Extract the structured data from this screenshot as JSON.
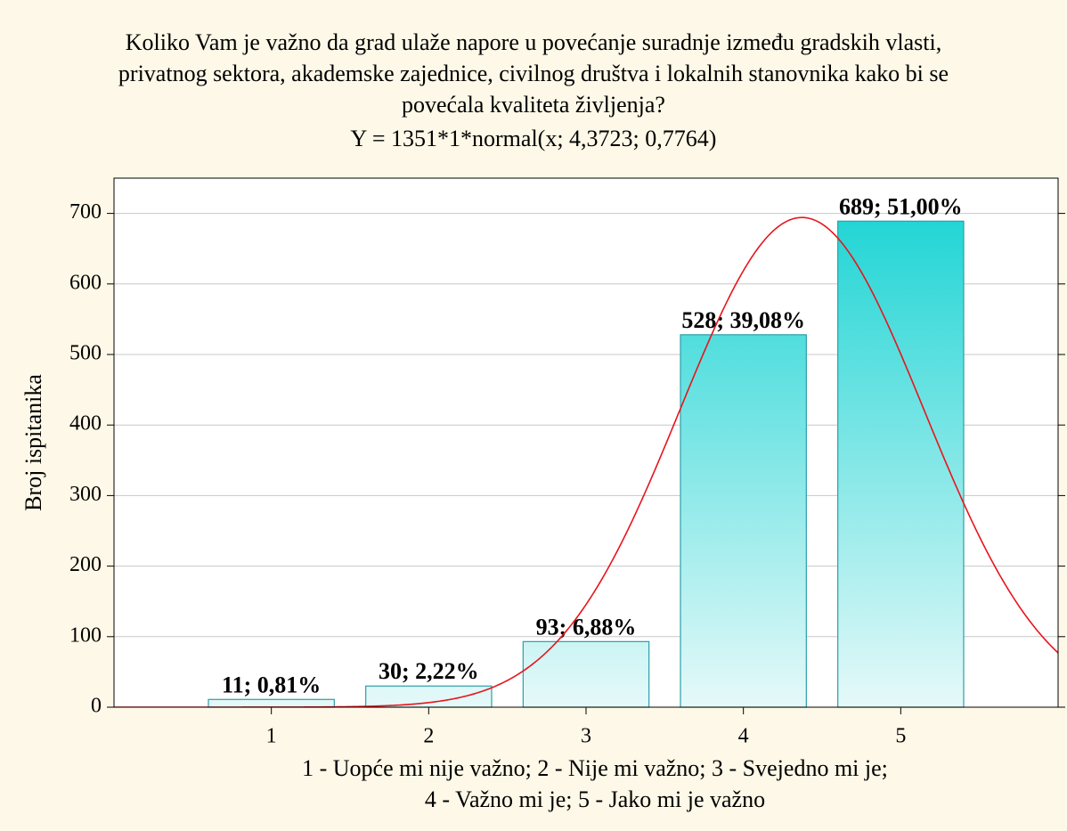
{
  "chart_data": {
    "type": "bar",
    "title": [
      "Koliko Vam je važno da grad ulaže napore u povećanje suradnje između gradskih vlasti,",
      "privatnog sektora, akademske zajednice, civilnog društva i lokalnih stanovnika kako bi se",
      "povećala kvaliteta življenja?"
    ],
    "subtitle": "Y = 1351*1*normal(x; 4,3723; 0,7764)",
    "x": [
      1,
      2,
      3,
      4,
      5
    ],
    "values": [
      11,
      30,
      93,
      528,
      689
    ],
    "value_labels": [
      "11; 0,81%",
      "30; 2,22%",
      "93; 6,88%",
      "528; 39,08%",
      "689; 51,00%"
    ],
    "xlim": [
      0,
      6
    ],
    "xticks": [
      1,
      2,
      3,
      4,
      5
    ],
    "ylim": [
      0,
      750
    ],
    "yticks": [
      0,
      100,
      200,
      300,
      400,
      500,
      600,
      700
    ],
    "xlabel": [
      "1 - Uopće mi nije važno; 2 - Nije mi važno; 3 - Svejedno mi je;",
      "4 - Važno mi je; 5 - Jako mi je važno"
    ],
    "ylabel": "Broj ispitanika",
    "grid": true,
    "color": "#1ed5d5",
    "fit": {
      "n": 1351,
      "mean": 4.3723,
      "sd": 0.7764,
      "color": "#e8141c"
    }
  }
}
